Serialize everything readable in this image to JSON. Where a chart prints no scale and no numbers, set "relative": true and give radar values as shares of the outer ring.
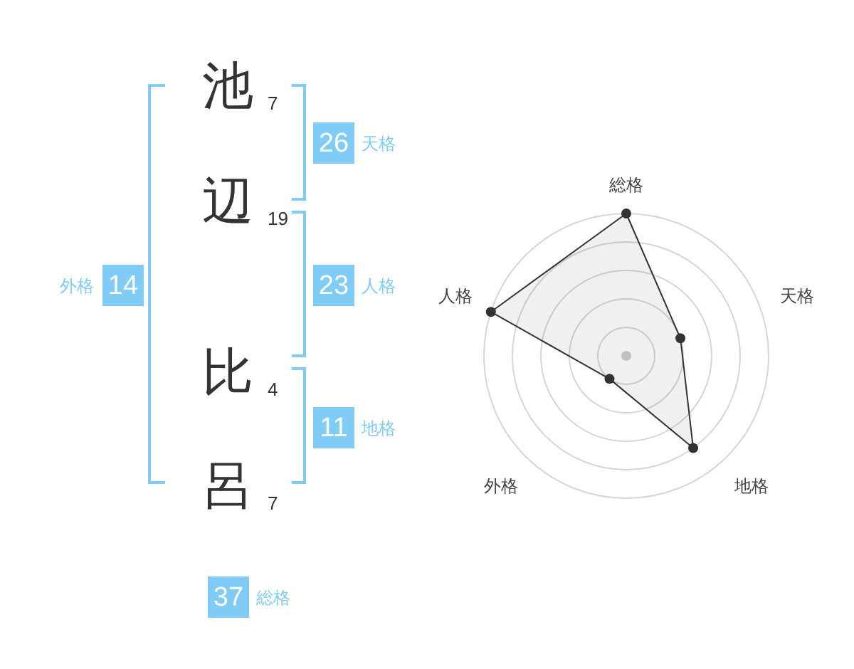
{
  "chart_data": [
    {
      "type": "other",
      "categories": [
        "池",
        "辺",
        "比",
        "呂"
      ],
      "values": [
        7,
        19,
        4,
        7
      ],
      "data_labels": true,
      "color": "#80ccf7",
      "annotations": [
        "26",
        "天格",
        "23",
        "人格",
        "11",
        "地格",
        "14",
        "外格",
        "37",
        "総格"
      ]
    },
    {
      "type": "radar",
      "categories": [
        "総格",
        "天格",
        "地格",
        "外格",
        "人格"
      ],
      "relative": true,
      "grid": true,
      "marker": "circle",
      "series": [
        {
          "color": "#333333",
          "values": [
            1,
            0.4,
            0.8,
            0.2,
            1
          ]
        }
      ]
    }
  ]
}
